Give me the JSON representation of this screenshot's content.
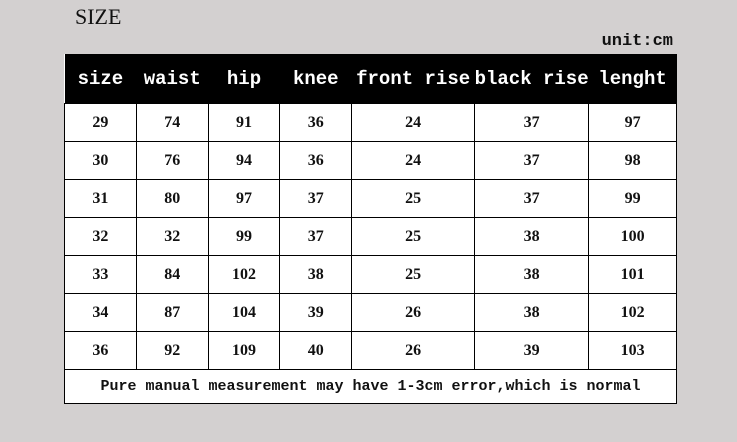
{
  "title": "SIZE",
  "unit": "unit:cm",
  "table": {
    "headers": [
      "size",
      "waist",
      "hip",
      "knee",
      "front rise",
      "black rise",
      "lenght"
    ],
    "rows": [
      [
        "29",
        "74",
        "91",
        "36",
        "24",
        "37",
        "97"
      ],
      [
        "30",
        "76",
        "94",
        "36",
        "24",
        "37",
        "98"
      ],
      [
        "31",
        "80",
        "97",
        "37",
        "25",
        "37",
        "99"
      ],
      [
        "32",
        "32",
        "99",
        "37",
        "25",
        "38",
        "100"
      ],
      [
        "33",
        "84",
        "102",
        "38",
        "25",
        "38",
        "101"
      ],
      [
        "34",
        "87",
        "104",
        "39",
        "26",
        "38",
        "102"
      ],
      [
        "36",
        "92",
        "109",
        "40",
        "26",
        "39",
        "103"
      ]
    ],
    "note": "Pure manual measurement may have 1-3cm error,which is normal"
  }
}
